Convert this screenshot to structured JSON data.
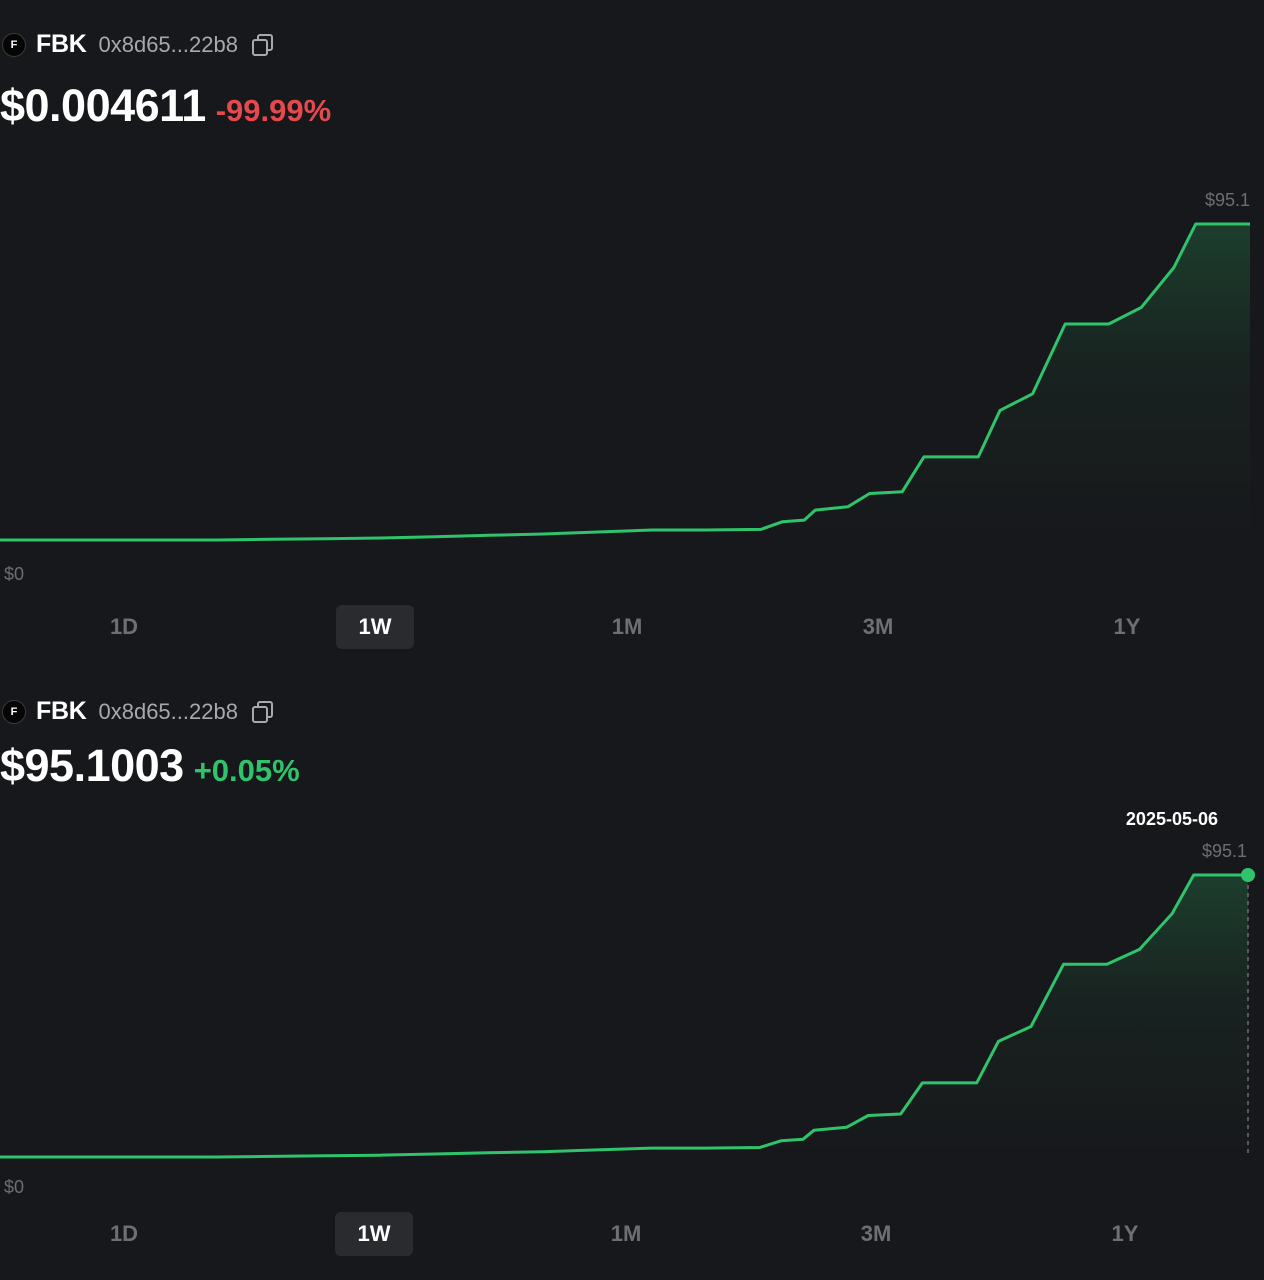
{
  "panels": [
    {
      "token": {
        "avatar_letter": "F",
        "symbol": "FBK",
        "address": "0x8d65...22b8",
        "copy_icon": "copy-icon"
      },
      "price": "$0.004611",
      "change": "-99.99%",
      "change_color": "#e5484d",
      "chart_labels": {
        "max": "$95.1",
        "min": "$0"
      },
      "ranges": [
        "1D",
        "1W",
        "1M",
        "3M",
        "1Y"
      ],
      "active_range": "1W"
    },
    {
      "token": {
        "avatar_letter": "F",
        "symbol": "FBK",
        "address": "0x8d65...22b8",
        "copy_icon": "copy-icon"
      },
      "price": "$95.1003",
      "change": "+0.05%",
      "change_color": "#2fc46b",
      "chart_labels": {
        "max": "$95.1",
        "min": "$0"
      },
      "tooltip_date": "2025-05-06",
      "ranges": [
        "1D",
        "1W",
        "1M",
        "3M",
        "1Y"
      ],
      "active_range": "1W"
    }
  ],
  "colors": {
    "line": "#2fc46b",
    "background": "#17181b"
  },
  "chart_data": [
    {
      "type": "area",
      "x": [
        0,
        5,
        10,
        15,
        20,
        25,
        30,
        35,
        40,
        45,
        50,
        55,
        60,
        65,
        70,
        72,
        74,
        75,
        78,
        80,
        83,
        85,
        90,
        92,
        95,
        98,
        100,
        102,
        105,
        108,
        110,
        115
      ],
      "values": [
        0,
        0,
        0,
        0,
        0,
        0.2,
        0.4,
        0.6,
        1.0,
        1.4,
        1.8,
        2.4,
        3.0,
        3.0,
        3.2,
        5.5,
        6.0,
        9.0,
        10.0,
        14.0,
        14.5,
        25.0,
        25.0,
        39.0,
        44.0,
        65.0,
        65.0,
        65.0,
        70.0,
        82.0,
        95.1,
        95.1
      ],
      "ylim": [
        0,
        95.1
      ],
      "y_tick_labels": [
        "$0",
        "$95.1"
      ]
    },
    {
      "type": "area",
      "x": [
        0,
        5,
        10,
        15,
        20,
        25,
        30,
        35,
        40,
        45,
        50,
        55,
        60,
        65,
        70,
        72,
        74,
        75,
        78,
        80,
        83,
        85,
        90,
        92,
        95,
        98,
        100,
        102,
        105,
        108,
        110,
        115
      ],
      "values": [
        0,
        0,
        0,
        0,
        0,
        0.2,
        0.4,
        0.6,
        1.0,
        1.4,
        1.8,
        2.4,
        3.0,
        3.0,
        3.2,
        5.5,
        6.0,
        9.0,
        10.0,
        14.0,
        14.5,
        25.0,
        25.0,
        39.0,
        44.0,
        65.0,
        65.0,
        65.0,
        70.0,
        82.0,
        95.1,
        95.1
      ],
      "ylim": [
        0,
        95.1
      ],
      "y_tick_labels": [
        "$0",
        "$95.1"
      ],
      "highlight": {
        "date": "2025-05-06",
        "value": 95.1
      }
    }
  ]
}
